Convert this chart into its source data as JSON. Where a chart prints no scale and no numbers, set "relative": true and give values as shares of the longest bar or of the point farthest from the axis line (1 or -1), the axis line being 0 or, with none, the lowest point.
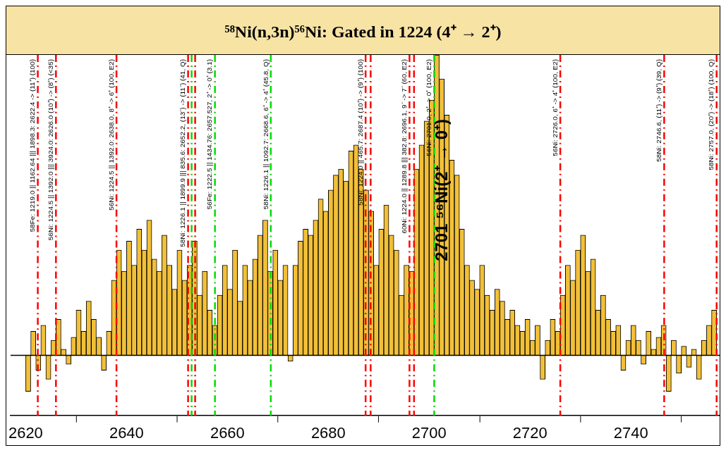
{
  "chart_data": {
    "type": "bar",
    "title": "⁵⁸Ni(n,3n)⁵⁶Ni: Gated in 1224 (4⁺ → 2⁺)",
    "relative": true,
    "color": "#f2c038",
    "grid": false,
    "legend": false,
    "line_style": "dashed",
    "xlim": [
      2617,
      2757.6
    ],
    "xticks": [
      2620,
      2640,
      2660,
      2680,
      2700,
      2720,
      2740
    ],
    "x": [
      2620.5,
      2621.5,
      2622.5,
      2623.5,
      2624.5,
      2625.5,
      2626.5,
      2627.5,
      2628.5,
      2629.5,
      2630.5,
      2631.5,
      2632.5,
      2633.5,
      2634.5,
      2635.5,
      2636.5,
      2637.5,
      2638.5,
      2639.5,
      2640.5,
      2641.5,
      2642.5,
      2643.5,
      2644.5,
      2645.5,
      2646.5,
      2647.5,
      2648.5,
      2649.5,
      2650.5,
      2651.5,
      2652.5,
      2653.5,
      2654.5,
      2655.5,
      2656.5,
      2657.5,
      2658.5,
      2659.5,
      2660.5,
      2661.5,
      2662.5,
      2663.5,
      2664.5,
      2665.5,
      2666.5,
      2667.5,
      2668.5,
      2669.5,
      2670.5,
      2671.5,
      2672.5,
      2673.5,
      2674.5,
      2675.5,
      2676.5,
      2677.5,
      2678.5,
      2679.5,
      2680.5,
      2681.5,
      2682.5,
      2683.5,
      2684.5,
      2685.5,
      2686.5,
      2687.5,
      2688.5,
      2689.5,
      2690.5,
      2691.5,
      2692.5,
      2693.5,
      2694.5,
      2695.5,
      2696.5,
      2697.5,
      2698.5,
      2699.5,
      2700.5,
      2701.5,
      2702.5,
      2703.5,
      2704.5,
      2705.5,
      2706.5,
      2707.5,
      2708.5,
      2709.5,
      2710.5,
      2711.5,
      2712.5,
      2713.5,
      2714.5,
      2715.5,
      2716.5,
      2717.5,
      2718.5,
      2719.5,
      2720.5,
      2721.5,
      2722.5,
      2723.5,
      2724.5,
      2725.5,
      2726.5,
      2727.5,
      2728.5,
      2729.5,
      2730.5,
      2731.5,
      2732.5,
      2733.5,
      2734.5,
      2735.5,
      2736.5,
      2737.5,
      2738.5,
      2739.5,
      2740.5,
      2741.5,
      2742.5,
      2743.5,
      2744.5,
      2745.5,
      2746.5,
      2747.5,
      2748.5,
      2749.5,
      2750.5,
      2751.5,
      2752.5,
      2753.5,
      2754.5,
      2755.5,
      2756.5
    ],
    "values": [
      -0.12,
      0.08,
      -0.05,
      0.1,
      -0.08,
      0.05,
      0.12,
      0.02,
      -0.03,
      0.06,
      0.15,
      0.08,
      0.18,
      0.12,
      0.06,
      -0.05,
      0.08,
      0.25,
      0.35,
      0.28,
      0.38,
      0.3,
      0.42,
      0.35,
      0.45,
      0.32,
      0.28,
      0.4,
      0.3,
      0.22,
      0.35,
      0.25,
      0.3,
      0.38,
      0.2,
      0.28,
      0.15,
      0.1,
      0.2,
      0.3,
      0.22,
      0.35,
      0.18,
      0.3,
      0.25,
      0.32,
      0.4,
      0.45,
      0.28,
      0.35,
      0.25,
      0.3,
      -0.02,
      0.3,
      0.38,
      0.42,
      0.4,
      0.45,
      0.52,
      0.48,
      0.55,
      0.6,
      0.62,
      0.58,
      0.68,
      0.7,
      0.62,
      0.55,
      0.48,
      0.3,
      0.42,
      0.5,
      0.4,
      0.35,
      0.2,
      0.3,
      0.28,
      0.62,
      0.7,
      0.78,
      0.85,
      1.0,
      0.92,
      0.8,
      0.65,
      0.6,
      0.42,
      0.3,
      0.25,
      0.22,
      0.3,
      0.2,
      0.15,
      0.22,
      0.18,
      0.12,
      0.15,
      0.1,
      0.08,
      0.12,
      0.05,
      0.1,
      -0.08,
      0.05,
      0.12,
      0.08,
      0.2,
      0.3,
      0.25,
      0.35,
      0.4,
      0.28,
      0.32,
      0.15,
      0.2,
      0.12,
      0.08,
      0.1,
      -0.05,
      0.05,
      0.1,
      0.05,
      -0.03,
      0.08,
      0.02,
      0.06,
      0.1,
      -0.12,
      0.05,
      -0.06,
      0.03,
      -0.04,
      0.02,
      -0.08,
      0.05,
      0.1,
      0.15
    ],
    "ref_lines": [
      {
        "axis": "x",
        "value": 2622.4,
        "label": "58Fe: 1219.0 || 1162.64 ||| 1898.3: 2622.4 -> (11⁺) (100)",
        "color": "#ff0000"
      },
      {
        "axis": "x",
        "value": 2626.0,
        "label": "56Ni: 1224.5 || 1392.0 ||| 3924.0: 2626.0 (10⁺) -> (8⁺) (<35)",
        "color": "#ff0000"
      },
      {
        "axis": "x",
        "value": 2638.0,
        "label": "56Ni: 1224.5 || 1392.0: 2638.0, 8⁺ -> 6⁺ (100, E2)",
        "color": "#ff0000"
      },
      {
        "axis": "x",
        "value": 2652.2,
        "label": "58Ni: 1226.1 || 1899.9 ||| 835.6: 2652.2, (13⁻) -> (11⁻) (41, Q)",
        "color": "#ff0000"
      },
      {
        "axis": "x",
        "value": 2652.9,
        "color": "#00dd00"
      },
      {
        "axis": "x",
        "value": 2653.6,
        "color": "#ff0000"
      },
      {
        "axis": "x",
        "value": 2657.527,
        "label": "56Fe: 1222.5 || 1434.76: 2657.527, 2⁺ -> 0⁺ (3.1)",
        "color": "#00dd00"
      },
      {
        "axis": "x",
        "value": 2668.6,
        "label": "58Ni: 1226.1 || 1092.7: 2668.6, 6⁺ -> 4⁺ (45.8, Q)",
        "color": "#00dd00"
      },
      {
        "axis": "x",
        "value": 2687.4,
        "label": "58Ni: 1224.0 || 465.7: 2687.4 (10⁺) -> (9⁺) (100)",
        "color": "#ff0000"
      },
      {
        "axis": "x",
        "value": 2688.4,
        "color": "#ff0000"
      },
      {
        "axis": "x",
        "value": 2696.1,
        "label": "60Ni: 1224.0 || 1289.8 ||| 382.8: 2696.1, 9⁻ -> 7⁻ (60, E2)",
        "color": "#ff0000"
      },
      {
        "axis": "x",
        "value": 2697.0,
        "color": "#ff0000"
      },
      {
        "axis": "x",
        "value": 2701.0,
        "label": "56Ni: 2701.0, 2⁺ -> 0⁺ (100, E2)",
        "color": "#00dd00"
      },
      {
        "axis": "x",
        "value": 2726.0,
        "label": "56Ni: 2726.0, 6⁺ -> 4⁺ (100, E2)",
        "color": "#ff0000"
      },
      {
        "axis": "x",
        "value": 2746.6,
        "label": "58Ni: 2746.6, (11⁺) -> (9⁺) (39, Q)",
        "color": "#ff0000"
      },
      {
        "axis": "x",
        "value": 2757.0,
        "label": "58Ni: 2757.0, (20⁺) -> (18⁺) (100, Q)",
        "color": "#ff0000"
      }
    ],
    "annotations": [
      {
        "text": "2701 ⁵⁶Ni(2⁺ → 0⁺)",
        "x": 2701,
        "y": 0.55
      }
    ]
  }
}
